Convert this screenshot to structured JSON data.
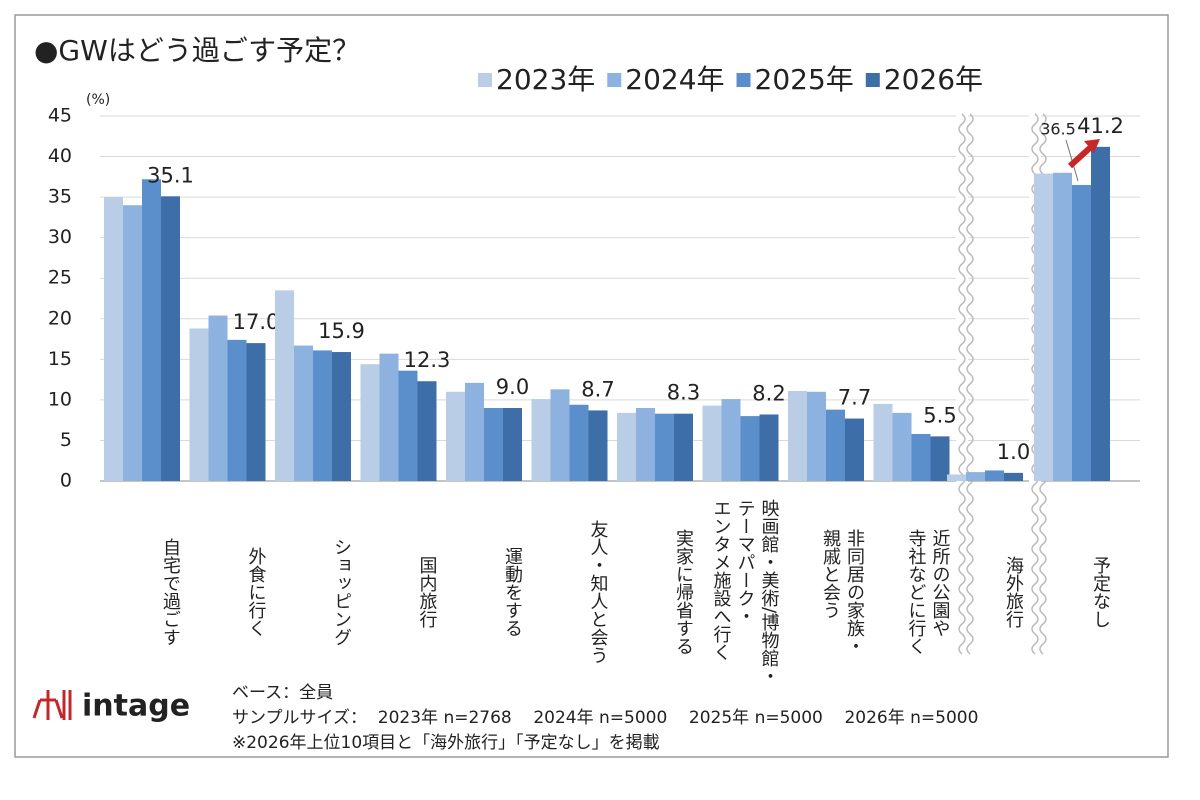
{
  "chart_data": {
    "type": "bar",
    "title": "●GWはどう過ごす予定？",
    "y_unit_label": "(%)",
    "categories": [
      "自宅で過ごす",
      "外食に行く",
      "ショッピング",
      "国内旅行",
      "運動をする",
      "友人・知人と会う",
      "実家に帰省する",
      "映画館・美術/博物館・\nテーマパーク・\nエンタメ施設へ行く",
      "非同居の家族・\n親戚と会う",
      "近所の公園や\n寺社などに行く",
      "海外旅行",
      "予定なし"
    ],
    "series": [
      {
        "name": "2023年",
        "color": "#b9cde6",
        "values": [
          35.0,
          18.8,
          23.5,
          14.4,
          11.0,
          10.1,
          8.4,
          9.3,
          11.1,
          9.5,
          0.8,
          37.9
        ]
      },
      {
        "name": "2024年",
        "color": "#8db2df",
        "values": [
          34.0,
          20.4,
          16.7,
          15.7,
          12.1,
          11.3,
          9.0,
          10.1,
          11.0,
          8.4,
          1.1,
          38.0
        ]
      },
      {
        "name": "2025年",
        "color": "#5b8fcb",
        "values": [
          37.2,
          17.4,
          16.1,
          13.6,
          9.0,
          9.4,
          8.3,
          8.0,
          8.8,
          5.8,
          1.3,
          36.5
        ],
        "value_labels": [
          null,
          null,
          null,
          null,
          null,
          null,
          null,
          null,
          null,
          null,
          null,
          "36.5"
        ]
      },
      {
        "name": "2026年",
        "color": "#3e6ea8",
        "values": [
          35.1,
          17.0,
          15.9,
          12.3,
          9.0,
          8.7,
          8.3,
          8.2,
          7.7,
          5.5,
          1.0,
          41.2
        ],
        "value_labels": [
          "35.1",
          "17.0",
          "15.9",
          "12.3",
          "9.0",
          "8.7",
          "8.3",
          "8.2",
          "7.7",
          "5.5",
          "1.0",
          "41.2"
        ]
      }
    ],
    "ylim": [
      0,
      45
    ],
    "yticks": [
      0,
      5,
      10,
      15,
      20,
      25,
      30,
      35,
      40,
      45
    ],
    "grid": true,
    "notes": [
      "ベース：全員",
      "サンプルサイズ：  2023年 n=2768    2024年 n=5000    2025年 n=5000    2026年 n=5000",
      "※2026年上位10項目と「海外旅行」「予定なし」を掲載"
    ],
    "logo": "intage"
  }
}
